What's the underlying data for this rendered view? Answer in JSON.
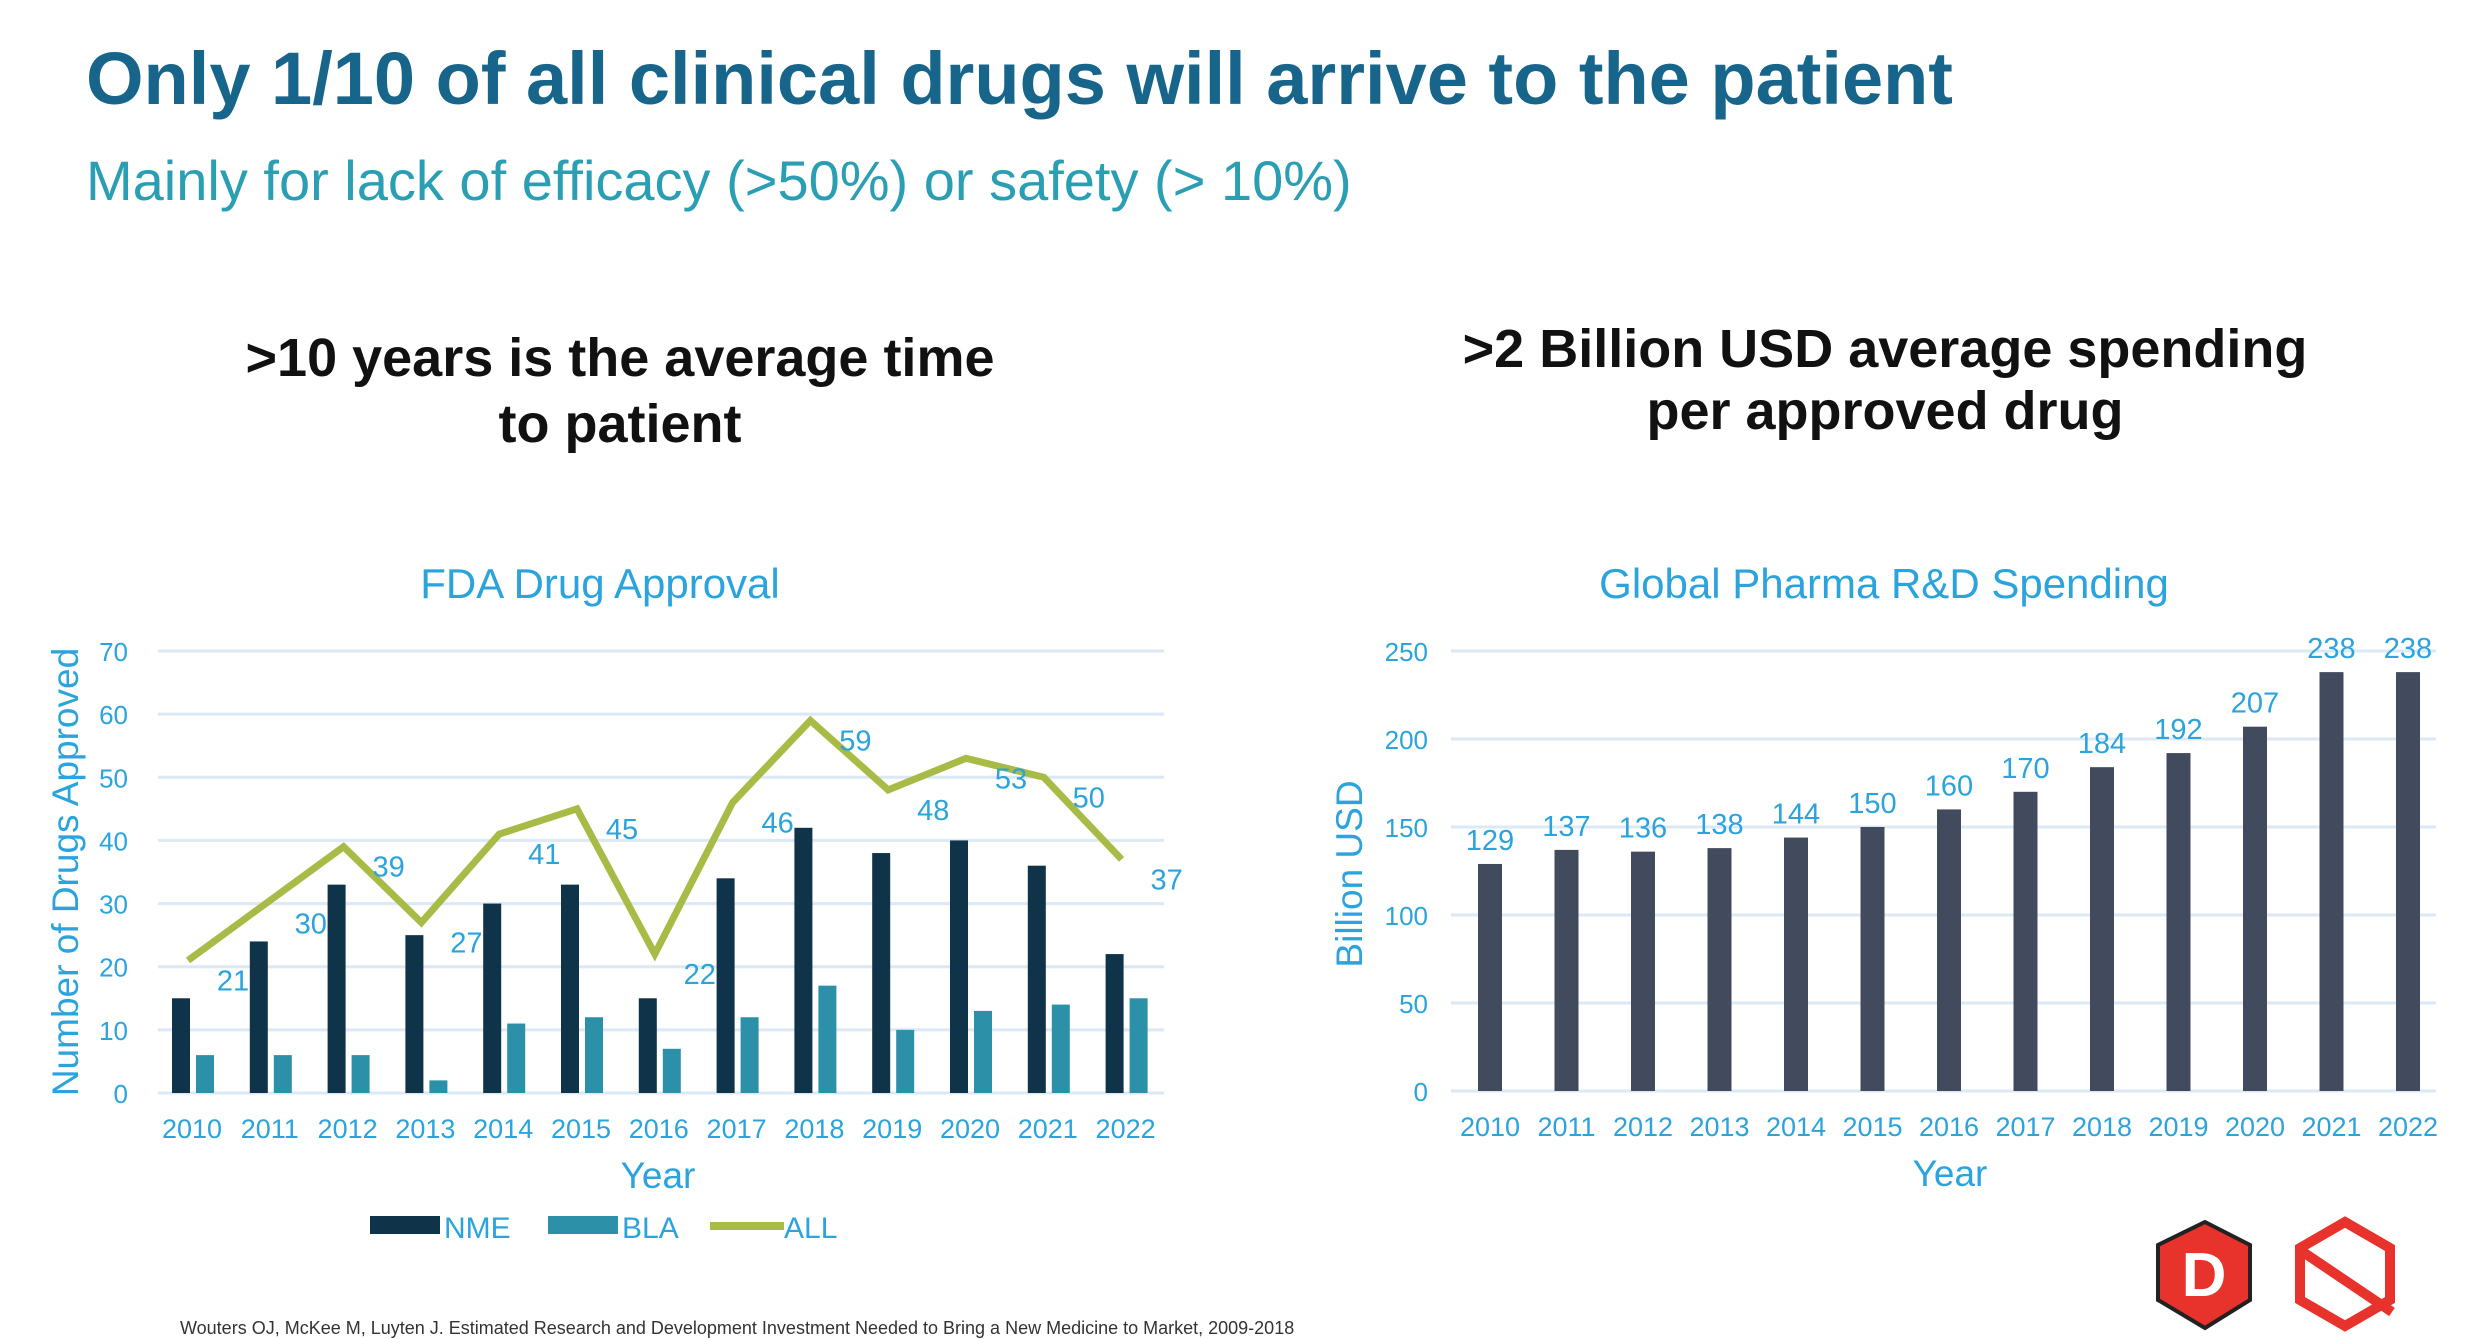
{
  "slide": {
    "title": "Only 1/10 of all clinical drugs will arrive to the patient",
    "subtitle": "Mainly for lack of efficacy (>50%) or safety (> 10%)",
    "left_heading": ">10 years is the average time to patient",
    "right_heading": ">2 Billion USD average spending per approved drug",
    "footer": "Wouters OJ, McKee M, Luyten J. Estimated Research and Development Investment Needed to Bring a New Medicine to Market, 2009-2018",
    "logos": [
      "D",
      "DX"
    ]
  },
  "colors": {
    "title": "#17658a",
    "subtitle": "#2a9fb3",
    "chart_text": "#2ba3dc",
    "nme": "#0f3349",
    "bla": "#2b90a8",
    "all": "#a9bb47",
    "spend": "#424b5e",
    "grid": "#dbe8f5",
    "logo": "#e8322c"
  },
  "chart_data": [
    {
      "type": "bar",
      "title": "FDA Drug Approval",
      "xlabel": "Year",
      "ylabel": "Number of Drugs Approved",
      "ylim": [
        0,
        70
      ],
      "yticks": [
        0,
        10,
        20,
        30,
        40,
        50,
        60,
        70
      ],
      "grid": true,
      "legend": "bottom",
      "categories": [
        "2010",
        "2011",
        "2012",
        "2013",
        "2014",
        "2015",
        "2016",
        "2017",
        "2018",
        "2019",
        "2020",
        "2021",
        "2022"
      ],
      "series": [
        {
          "name": "NME",
          "type": "bar",
          "values": [
            15,
            24,
            33,
            25,
            30,
            33,
            15,
            34,
            42,
            38,
            40,
            36,
            22
          ]
        },
        {
          "name": "BLA",
          "type": "bar",
          "values": [
            6,
            6,
            6,
            2,
            11,
            12,
            7,
            12,
            17,
            10,
            13,
            14,
            15
          ]
        },
        {
          "name": "ALL",
          "type": "line",
          "values": [
            21,
            30,
            39,
            27,
            41,
            45,
            22,
            46,
            59,
            48,
            53,
            50,
            37
          ],
          "data_labels": true
        }
      ]
    },
    {
      "type": "bar",
      "title": "Global Pharma R&D Spending",
      "xlabel": "Year",
      "ylabel": "Billion USD",
      "ylim": [
        0,
        250
      ],
      "yticks": [
        0,
        50,
        100,
        150,
        200,
        250
      ],
      "grid": true,
      "categories": [
        "2010",
        "2011",
        "2012",
        "2013",
        "2014",
        "2015",
        "2016",
        "2017",
        "2018",
        "2019",
        "2020",
        "2021",
        "2022"
      ],
      "values": [
        129,
        137,
        136,
        138,
        144,
        150,
        160,
        170,
        184,
        192,
        207,
        238,
        238
      ],
      "data_labels": true
    }
  ]
}
